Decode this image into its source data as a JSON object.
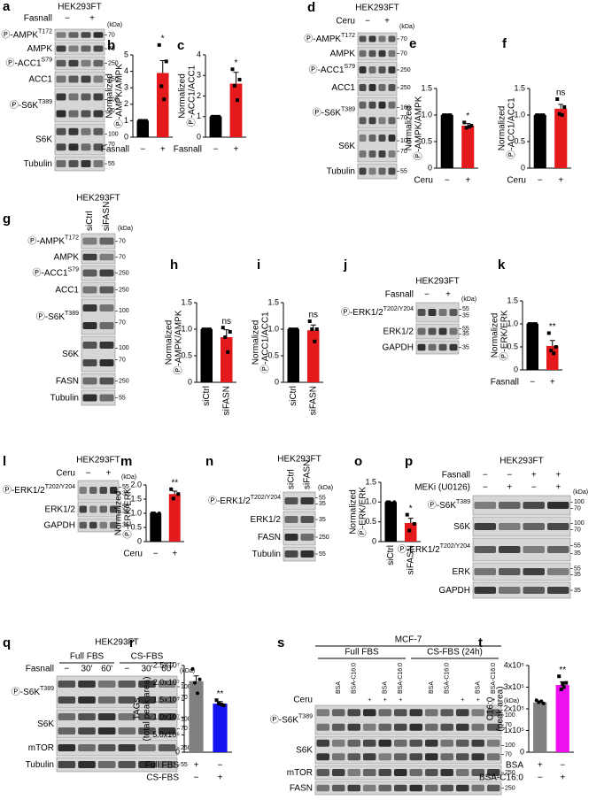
{
  "blots": [
    {
      "letter": "a",
      "title": "HEK293FT",
      "unit": "(kDa)",
      "header": [
        {
          "label": "Fasnall",
          "marks": [
            "−",
            "+"
          ]
        }
      ],
      "rows": [
        {
          "label": "Ⓟ-AMPK",
          "sup": "T172",
          "markers": [
            70
          ]
        },
        {
          "label": "AMPK",
          "markers": [
            70
          ]
        },
        {
          "label": "Ⓟ-ACC1",
          "sup": "S79",
          "markers": [
            250
          ]
        },
        {
          "label": "ACC1",
          "markers": [
            250
          ]
        },
        {
          "label": "Ⓟ-S6K",
          "sup": "T389",
          "markers": [
            100,
            70
          ]
        },
        {
          "label": "S6K",
          "markers": [
            100,
            70
          ]
        },
        {
          "label": "Tubulin",
          "markers": [
            55
          ]
        }
      ]
    },
    {
      "letter": "d",
      "title": "HEK293FT",
      "unit": "(kDa)",
      "header": [
        {
          "label": "Ceru",
          "marks": [
            "−",
            "+"
          ]
        }
      ],
      "rows": [
        {
          "label": "Ⓟ-AMPK",
          "sup": "T172",
          "markers": [
            70
          ]
        },
        {
          "label": "AMPK",
          "markers": [
            70
          ]
        },
        {
          "label": "Ⓟ-ACC1",
          "sup": "S79",
          "markers": [
            250
          ]
        },
        {
          "label": "ACC1",
          "markers": [
            250
          ]
        },
        {
          "label": "Ⓟ-S6K",
          "sup": "T389",
          "markers": [
            100,
            70
          ]
        },
        {
          "label": "S6K",
          "markers": [
            100,
            70
          ]
        },
        {
          "label": "Tubulin",
          "markers": [
            55
          ]
        }
      ]
    },
    {
      "letter": "g",
      "title": "HEK293FT",
      "unit": "(kDa)",
      "header": [
        {
          "rotated": true,
          "marks": [
            "siCtrl",
            "siFASN"
          ]
        }
      ],
      "rows": [
        {
          "label": "Ⓟ-AMPK",
          "sup": "T172",
          "markers": [
            70
          ]
        },
        {
          "label": "AMPK",
          "markers": [
            70
          ]
        },
        {
          "label": "Ⓟ-ACC1",
          "sup": "S79",
          "markers": [
            250
          ]
        },
        {
          "label": "ACC1",
          "markers": [
            250
          ]
        },
        {
          "label": "Ⓟ-S6K",
          "sup": "T389",
          "markers": [
            100,
            70
          ]
        },
        {
          "label": "S6K",
          "markers": [
            100,
            70
          ]
        },
        {
          "label": "FASN",
          "markers": [
            250
          ]
        },
        {
          "label": "Tubulin",
          "markers": [
            55
          ]
        }
      ]
    },
    {
      "letter": "j",
      "title": "HEK293FT",
      "unit": "(kDa)",
      "header": [
        {
          "label": "Fasnall",
          "marks": [
            "−",
            "+"
          ]
        }
      ],
      "rows": [
        {
          "label": "Ⓟ-ERK1/2",
          "sup": "T202/Y204",
          "markers": [
            55,
            35
          ]
        },
        {
          "label": "ERK1/2",
          "markers": [
            55,
            35
          ]
        },
        {
          "label": "GAPDH",
          "markers": [
            35
          ]
        }
      ]
    },
    {
      "letter": "l",
      "title": "HEK293FT",
      "unit": "(kDa)",
      "header": [
        {
          "label": "Ceru",
          "marks": [
            "−",
            "+"
          ]
        }
      ],
      "rows": [
        {
          "label": "Ⓟ-ERK1/2",
          "sup": "T202/Y204",
          "markers": [
            55,
            35
          ]
        },
        {
          "label": "ERK1/2",
          "markers": [
            55,
            35
          ]
        },
        {
          "label": "GAPDH",
          "markers": [
            35
          ]
        }
      ]
    },
    {
      "letter": "n",
      "title": "HEK293FT",
      "unit": "(kDa)",
      "header": [
        {
          "rotated": true,
          "marks": [
            "siCtrl",
            "siFASN"
          ]
        }
      ],
      "rows": [
        {
          "label": "Ⓟ-ERK1/2",
          "sup": "T202/Y204",
          "markers": [
            55,
            35
          ]
        },
        {
          "label": "ERK1/2",
          "markers": [
            35
          ]
        },
        {
          "label": "FASN",
          "markers": [
            250
          ]
        },
        {
          "label": "Tubulin",
          "markers": [
            55
          ]
        }
      ]
    },
    {
      "letter": "p",
      "title": "HEK293FT",
      "unit": "(kDa)",
      "header": [
        {
          "label": "Fasnall",
          "marks": [
            "−",
            "−",
            "+",
            "+"
          ]
        },
        {
          "label": "MEKi (U0126)",
          "marks": [
            "−",
            "+",
            "−",
            "+"
          ]
        }
      ],
      "rows": [
        {
          "label": "Ⓟ-S6K",
          "sup": "T389",
          "markers": [
            100,
            70
          ]
        },
        {
          "label": "S6K",
          "markers": [
            100,
            70
          ]
        },
        {
          "label": "Ⓟ-ERK1/2",
          "sup": "T202/Y204",
          "markers": [
            55,
            35
          ]
        },
        {
          "label": "ERK",
          "markers": [
            55,
            35
          ]
        },
        {
          "label": "GAPDH",
          "markers": [
            35
          ]
        }
      ]
    },
    {
      "letter": "q",
      "title": "HEK293FT",
      "unit": "(kDa)",
      "header": [
        {
          "groups": [
            "Full FBS",
            "CS-FBS"
          ]
        },
        {
          "label": "Fasnall",
          "marks": [
            "−",
            "30'",
            "60'",
            "−",
            "30'",
            "60'"
          ]
        }
      ],
      "rows": [
        {
          "label": "Ⓟ-S6K",
          "sup": "T389",
          "markers": [
            100,
            70
          ]
        },
        {
          "label": "S6K",
          "markers": [
            100,
            70
          ]
        },
        {
          "label": "mTOR",
          "markers": [
            250
          ]
        },
        {
          "label": "Tubulin",
          "markers": [
            55
          ]
        }
      ]
    },
    {
      "letter": "s",
      "title": "MCF-7",
      "unit": "(kDa)",
      "header": [
        {
          "groups": [
            "Full FBS",
            "CS-FBS (24h)"
          ]
        },
        {
          "rotated": true,
          "marks": [
            null,
            "BSA",
            "BSA-C16:0",
            null,
            "BSA",
            "BSA-C16:0",
            null,
            "BSA",
            "BSA-C16:0",
            null,
            "BSA",
            "BSA-C16:0"
          ]
        },
        {
          "label": "Ceru",
          "marks": [
            null,
            null,
            null,
            "+",
            "+",
            "+",
            null,
            null,
            null,
            "+",
            "+",
            "+"
          ]
        }
      ],
      "rows": [
        {
          "label": "Ⓟ-S6K",
          "sup": "T389",
          "markers": [
            100,
            70
          ]
        },
        {
          "label": "S6K",
          "markers": [
            100,
            70
          ]
        },
        {
          "label": "mTOR",
          "markers": [
            250
          ]
        },
        {
          "label": "FASN",
          "markers": [
            250
          ]
        }
      ]
    }
  ],
  "chart_data": [
    {
      "letter": "b",
      "type": "bar",
      "ylabel": [
        "Normalized",
        "Ⓟ-AMPK/AMPK"
      ],
      "xlabel": "Fasnall",
      "categories": [
        "−",
        "+"
      ],
      "values": [
        1,
        3.9
      ],
      "errors": [
        0,
        0.75
      ],
      "points": [
        [
          1,
          1,
          1,
          1
        ],
        [
          5.6,
          4.6,
          3.1,
          2.3
        ]
      ],
      "colors": [
        "#000000",
        "#e3191c"
      ],
      "ylim": [
        0,
        5
      ],
      "yticks": [
        0,
        1,
        2,
        3,
        4,
        5
      ],
      "annotation": "*"
    },
    {
      "letter": "c",
      "type": "bar",
      "ylabel": [
        "Normalized",
        "Ⓟ-ACC1/ACC1"
      ],
      "xlabel": "Fasnall",
      "categories": [
        "−",
        "+"
      ],
      "values": [
        1,
        2.6
      ],
      "errors": [
        0,
        0.55
      ],
      "points": [
        [
          1,
          1,
          1,
          1
        ],
        [
          3.3,
          2.8,
          2.5,
          1.8
        ]
      ],
      "colors": [
        "#000000",
        "#e3191c"
      ],
      "ylim": [
        0,
        4
      ],
      "yticks": [
        0,
        1,
        2,
        3,
        4
      ],
      "annotation": "*"
    },
    {
      "letter": "e",
      "type": "bar",
      "ylabel": [
        "Normalized",
        "Ⓟ-AMPK/AMPK"
      ],
      "xlabel": "Ceru",
      "categories": [
        "−",
        "+"
      ],
      "values": [
        1,
        0.8
      ],
      "errors": [
        0,
        0.04
      ],
      "points": [
        [
          1,
          1,
          1,
          1
        ],
        [
          0.86,
          0.8,
          0.76,
          0.78
        ]
      ],
      "colors": [
        "#000000",
        "#e3191c"
      ],
      "ylim": [
        0,
        1.5
      ],
      "yticks": [
        0,
        0.5,
        {
          "value": 1,
          "label": "1.0"
        },
        1.5
      ],
      "annotation": "*"
    },
    {
      "letter": "f",
      "type": "bar",
      "ylabel": [
        "Normalized",
        "Ⓟ-ACC1/ACC1"
      ],
      "xlabel": "Ceru",
      "categories": [
        "−",
        "+"
      ],
      "values": [
        1,
        1.12
      ],
      "errors": [
        0,
        0.08
      ],
      "points": [
        [
          1,
          1,
          1,
          1
        ],
        [
          1.3,
          1.15,
          1.02,
          1.0
        ]
      ],
      "colors": [
        "#000000",
        "#e3191c"
      ],
      "ylim": [
        0,
        1.5
      ],
      "yticks": [
        0,
        0.5,
        {
          "value": 1,
          "label": "1.0"
        },
        1.5
      ],
      "annotation": "ns"
    },
    {
      "letter": "h",
      "type": "bar",
      "ylabel": [
        "Normalized",
        "Ⓟ-AMPK/AMPK"
      ],
      "categories": [
        "siCtrl",
        "siFASN"
      ],
      "rotate_categories": true,
      "values": [
        1,
        0.85
      ],
      "errors": [
        0,
        0.14
      ],
      "points": [
        [
          1,
          1,
          1,
          1
        ],
        [
          1.03,
          0.95,
          0.85,
          0.57
        ]
      ],
      "colors": [
        "#000000",
        "#e3191c"
      ],
      "ylim": [
        0,
        1.5
      ],
      "yticks": [
        0,
        0.5,
        {
          "value": 1,
          "label": "1.0"
        },
        1.5
      ],
      "annotation": "ns"
    },
    {
      "letter": "i",
      "type": "bar",
      "ylabel": [
        "Normalized",
        "Ⓟ-ACC1/ACC1"
      ],
      "categories": [
        "siCtrl",
        "siFASN"
      ],
      "rotate_categories": true,
      "values": [
        1,
        0.98
      ],
      "errors": [
        0,
        0.1
      ],
      "points": [
        [
          1,
          1,
          1,
          1
        ],
        [
          1.15,
          1.0,
          1.0,
          0.77
        ]
      ],
      "colors": [
        "#000000",
        "#e3191c"
      ],
      "ylim": [
        0,
        1.5
      ],
      "yticks": [
        0,
        0.5,
        {
          "value": 1,
          "label": "1.0"
        },
        1.5
      ],
      "annotation": "ns"
    },
    {
      "letter": "k",
      "type": "bar",
      "ylabel": [
        "Normalized",
        "Ⓟ-ERK/ERK"
      ],
      "xlabel": "Fasnall",
      "categories": [
        "−",
        "+"
      ],
      "values": [
        1,
        0.52
      ],
      "errors": [
        0,
        0.12
      ],
      "points": [
        [
          1,
          1,
          1,
          1
        ],
        [
          0.8,
          0.5,
          0.42,
          0.36
        ]
      ],
      "colors": [
        "#000000",
        "#e3191c"
      ],
      "ylim": [
        0,
        1.5
      ],
      "yticks": [
        0,
        0.5,
        {
          "value": 1,
          "label": "1.0"
        },
        1.5
      ],
      "annotation": "**"
    },
    {
      "letter": "m",
      "type": "bar",
      "ylabel": [
        "Normalized",
        "Ⓟ-ERK/ERK"
      ],
      "xlabel": "Ceru",
      "categories": [
        "−",
        "+"
      ],
      "values": [
        1,
        1.68
      ],
      "errors": [
        0,
        0.1
      ],
      "points": [
        [
          1,
          1,
          1
        ],
        [
          1.85,
          1.68,
          1.52
        ]
      ],
      "colors": [
        "#000000",
        "#e3191c"
      ],
      "ylim": [
        0,
        2
      ],
      "yticks": [
        0,
        0.5,
        {
          "value": 1,
          "label": "1.0"
        },
        1.5,
        {
          "value": 2,
          "label": "2.0"
        }
      ],
      "annotation": "**"
    },
    {
      "letter": "o",
      "type": "bar",
      "ylabel": [
        "Normalized",
        "Ⓟ-ERK/ERK"
      ],
      "categories": [
        "siCtrl",
        "siFASN"
      ],
      "rotate_categories": true,
      "values": [
        1,
        0.47
      ],
      "errors": [
        0,
        0.12
      ],
      "points": [
        [
          1,
          1,
          1
        ],
        [
          0.68,
          0.45,
          0.28
        ]
      ],
      "colors": [
        "#000000",
        "#e3191c"
      ],
      "ylim": [
        0,
        1.5
      ],
      "yticks": [
        0,
        0.5,
        {
          "value": 1,
          "label": "1.0"
        },
        1.5
      ],
      "annotation": "*"
    },
    {
      "letter": "r",
      "type": "bar",
      "ylabel": [
        "TAGs",
        "(total peak area)"
      ],
      "conditions": [
        {
          "label": "Full FBS",
          "marks": [
            "+",
            "−"
          ]
        },
        {
          "label": "CS-FBS",
          "marks": [
            "−",
            "+"
          ]
        }
      ],
      "values": [
        20500000,
        14000000
      ],
      "errors": [
        1500000,
        600000
      ],
      "points": [
        [
          24000000,
          21000000,
          20000000,
          17000000
        ],
        [
          15000000,
          13500000,
          14000000,
          13800000
        ]
      ],
      "colors": [
        "#808080",
        "#1414f0"
      ],
      "ylim": [
        0,
        25000000
      ],
      "yticks": [
        0,
        {
          "value": 5000000,
          "label": "5.0x10⁶"
        },
        {
          "value": 10000000,
          "label": "1.0x10⁷"
        },
        {
          "value": 15000000,
          "label": "1.5x10⁷"
        },
        {
          "value": 20000000,
          "label": "2.0x10⁷"
        },
        {
          "value": 25000000,
          "label": "2.5x10⁷"
        }
      ],
      "annotation": "**"
    },
    {
      "letter": "t",
      "type": "bar",
      "ylabel": [
        "C16:0",
        "(peak area)"
      ],
      "conditions": [
        {
          "label": "BSA",
          "marks": [
            "+",
            "−"
          ]
        },
        {
          "label": "BSA-C16:0",
          "marks": [
            "−",
            "+"
          ]
        }
      ],
      "values": [
        230000,
        310000
      ],
      "errors": [
        6000,
        15000
      ],
      "points": [
        [
          240000,
          225000,
          230000,
          235000
        ],
        [
          350000,
          320000,
          290000,
          300000,
          315000
        ]
      ],
      "colors": [
        "#808080",
        "#ee11ee"
      ],
      "ylim": [
        0,
        400000
      ],
      "yticks": [
        0,
        {
          "value": 100000,
          "label": "1x10⁵"
        },
        {
          "value": 200000,
          "label": "2x10⁵"
        },
        {
          "value": 300000,
          "label": "3x10⁵"
        },
        {
          "value": 400000,
          "label": "4x10⁵"
        }
      ],
      "annotation": "**"
    }
  ]
}
